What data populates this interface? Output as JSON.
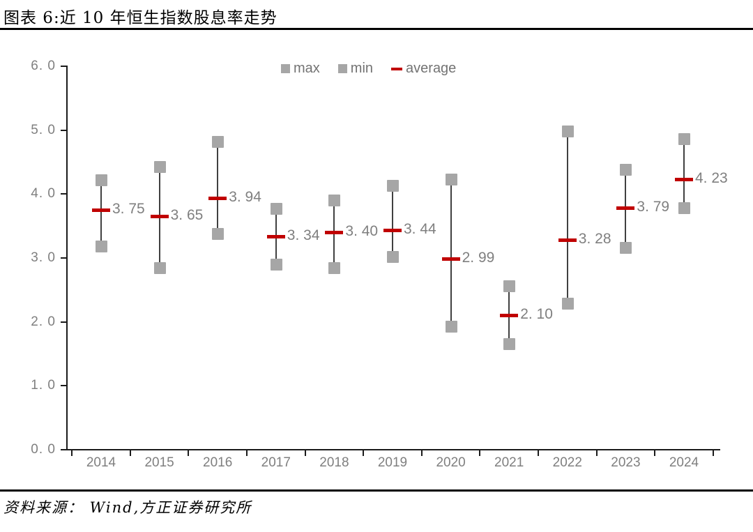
{
  "page": {
    "title": "图表 6:近 10 年恒生指数股息率走势",
    "source": "资料来源： Wind,方正证券研究所"
  },
  "legend": {
    "items": [
      {
        "label": "max",
        "marker": "square"
      },
      {
        "label": "min",
        "marker": "square"
      },
      {
        "label": "average",
        "marker": "dash"
      }
    ]
  },
  "colors": {
    "marker_gray": "#a6a6a6",
    "average_red": "#c00000",
    "axis_black": "#1a1a1a",
    "range_line": "#404040",
    "label_gray": "#7f7f7f",
    "legend_text": "#737373"
  },
  "chart_data": {
    "type": "range-bar (high-low with average marker)",
    "title": "近 10 年恒生指数股息率走势",
    "categories": [
      "2014",
      "2015",
      "2016",
      "2017",
      "2018",
      "2019",
      "2020",
      "2021",
      "2022",
      "2023",
      "2024"
    ],
    "series": [
      {
        "name": "max",
        "values": [
          4.22,
          4.43,
          4.82,
          3.77,
          3.9,
          4.13,
          4.23,
          2.56,
          4.99,
          4.39,
          4.86
        ]
      },
      {
        "name": "min",
        "values": [
          3.18,
          2.85,
          3.38,
          2.9,
          2.85,
          3.02,
          1.93,
          1.66,
          2.29,
          3.16,
          3.79
        ]
      },
      {
        "name": "average",
        "values": [
          3.75,
          3.65,
          3.94,
          3.34,
          3.4,
          3.44,
          2.99,
          2.1,
          3.28,
          3.79,
          4.23
        ]
      }
    ],
    "average_labels": [
      "3. 75",
      "3. 65",
      "3. 94",
      "3. 34",
      "3. 40",
      "3. 44",
      "2. 99",
      "2. 10",
      "3. 28",
      "3. 79",
      "4. 23"
    ],
    "y_tick_labels": [
      "6. 0",
      "5. 0",
      "4. 0",
      "3. 0",
      "2. 0",
      "1. 0",
      "0. 0"
    ],
    "xlabel": "",
    "ylabel": "",
    "ylim": [
      0.0,
      6.0
    ],
    "y_tick_step": 1.0,
    "grid": false,
    "legend_position": "top-center"
  }
}
